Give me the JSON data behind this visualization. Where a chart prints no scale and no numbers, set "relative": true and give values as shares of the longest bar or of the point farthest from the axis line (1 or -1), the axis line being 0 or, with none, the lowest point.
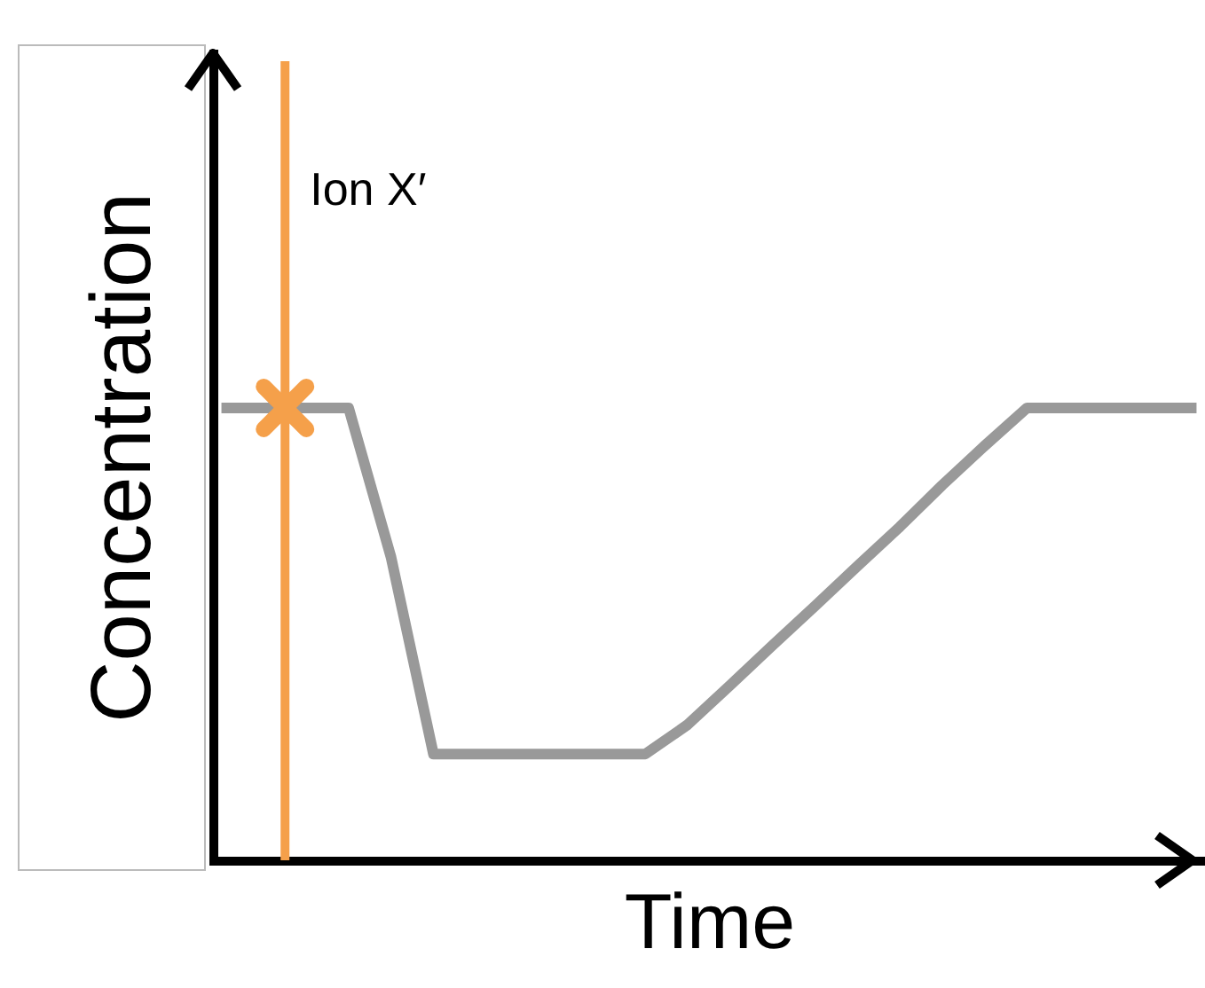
{
  "chart_data": {
    "type": "line",
    "relative": true,
    "xlabel": "Time",
    "ylabel": "Concentration",
    "tick_labels": false,
    "grid": false,
    "categories": [
      null,
      null,
      null,
      null,
      null,
      null,
      null,
      null,
      null,
      null,
      null,
      null,
      null,
      null,
      null,
      null,
      null,
      null,
      null,
      null,
      null,
      null,
      null,
      null
    ],
    "series": [
      {
        "color": "#999999",
        "values": [
          1,
          1,
          1,
          1,
          0.67,
          0.235,
          0.235,
          0.235,
          0.235,
          0.235,
          0.235,
          0.3,
          0.387,
          0.475,
          0.562,
          0.65,
          0.737,
          0.829,
          0.916,
          1,
          1,
          1,
          1,
          1
        ]
      }
    ],
    "ref_lines": [
      {
        "axis": "x",
        "label": "Ion X′",
        "color": "#f5a04a"
      }
    ]
  }
}
